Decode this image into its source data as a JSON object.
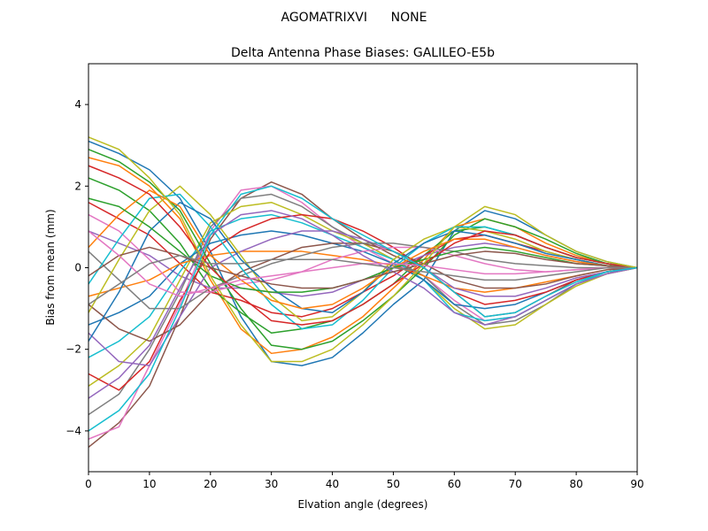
{
  "figure": {
    "suptitle": "AGOMATRIXVI      NONE"
  },
  "chart_data": {
    "type": "line",
    "title": "Delta Antenna Phase Biases: GALILEO-E5b",
    "xlabel": "Elvation angle (degrees)",
    "ylabel": "Bias from mean (mm)",
    "xlim": [
      0,
      90
    ],
    "ylim": [
      -5,
      5
    ],
    "xticks": [
      0,
      10,
      20,
      30,
      40,
      50,
      60,
      70,
      80,
      90
    ],
    "yticks": [
      -4,
      -2,
      0,
      2,
      4
    ],
    "grid": false,
    "legend": "none",
    "x": [
      0,
      5,
      10,
      15,
      20,
      25,
      30,
      35,
      40,
      45,
      50,
      55,
      60,
      65,
      70,
      75,
      80,
      85,
      90
    ],
    "series": [
      {
        "values": [
          3.1,
          2.8,
          2.4,
          1.7,
          0.4,
          -1.2,
          -2.3,
          -2.4,
          -2.2,
          -1.6,
          -0.9,
          -0.3,
          0.9,
          1.4,
          1.2,
          0.8,
          0.4,
          0.15,
          0.0
        ]
      },
      {
        "values": [
          2.7,
          2.5,
          2.0,
          1.2,
          -0.3,
          -1.5,
          -2.1,
          -2.0,
          -1.7,
          -1.2,
          -0.5,
          0.2,
          1.0,
          1.2,
          1.0,
          0.6,
          0.3,
          0.1,
          0.0
        ]
      },
      {
        "values": [
          2.2,
          1.9,
          1.4,
          0.6,
          -0.5,
          -1.1,
          -1.6,
          -1.5,
          -1.3,
          -0.9,
          -0.4,
          0.3,
          0.9,
          1.0,
          0.8,
          0.5,
          0.25,
          0.1,
          0.0
        ]
      },
      {
        "values": [
          1.6,
          1.2,
          0.8,
          0.1,
          -0.6,
          -0.8,
          -1.1,
          -1.2,
          -1.0,
          -0.6,
          -0.2,
          0.3,
          0.7,
          0.8,
          0.6,
          0.4,
          0.2,
          0.05,
          0.0
        ]
      },
      {
        "values": [
          0.9,
          0.6,
          0.3,
          -0.2,
          -0.5,
          -0.5,
          -0.6,
          -0.7,
          -0.6,
          -0.3,
          0.0,
          0.3,
          0.5,
          0.6,
          0.5,
          0.3,
          0.15,
          0.05,
          0.0
        ]
      },
      {
        "values": [
          -4.4,
          -3.8,
          -2.9,
          -1.2,
          0.7,
          1.7,
          2.1,
          1.8,
          1.2,
          0.7,
          0.3,
          0.0,
          -0.6,
          -1.2,
          -1.1,
          -0.7,
          -0.3,
          -0.1,
          0.0
        ]
      },
      {
        "values": [
          -4.2,
          -3.9,
          -2.4,
          -0.9,
          0.9,
          1.9,
          2.0,
          1.6,
          1.0,
          0.5,
          0.1,
          -0.2,
          -0.8,
          -1.3,
          -1.2,
          -0.8,
          -0.4,
          -0.15,
          0.0
        ]
      },
      {
        "values": [
          -3.6,
          -3.1,
          -2.0,
          -0.6,
          1.0,
          1.7,
          1.8,
          1.5,
          1.0,
          0.6,
          0.2,
          -0.2,
          -0.9,
          -1.4,
          -1.3,
          -0.9,
          -0.4,
          -0.15,
          0.0
        ]
      },
      {
        "values": [
          -2.9,
          -2.4,
          -1.7,
          -0.3,
          1.1,
          1.5,
          1.6,
          1.3,
          0.9,
          0.6,
          0.2,
          -0.3,
          -1.0,
          -1.5,
          -1.4,
          -0.9,
          -0.45,
          -0.15,
          0.0
        ]
      },
      {
        "values": [
          -2.2,
          -1.8,
          -1.2,
          -0.1,
          0.9,
          1.2,
          1.3,
          1.1,
          0.8,
          0.5,
          0.2,
          -0.3,
          -1.1,
          -1.3,
          -1.2,
          -0.8,
          -0.4,
          -0.1,
          0.0
        ]
      },
      {
        "values": [
          -1.4,
          -1.1,
          -0.7,
          0.1,
          0.6,
          0.8,
          0.9,
          0.8,
          0.6,
          0.4,
          0.1,
          -0.3,
          -0.9,
          -1.0,
          -0.9,
          -0.6,
          -0.3,
          -0.1,
          0.0
        ]
      },
      {
        "values": [
          -0.7,
          -0.5,
          -0.3,
          0.1,
          0.3,
          0.4,
          0.4,
          0.4,
          0.3,
          0.2,
          0.05,
          -0.2,
          -0.5,
          -0.6,
          -0.5,
          -0.35,
          -0.2,
          -0.05,
          0.0
        ]
      },
      {
        "values": [
          2.9,
          2.6,
          2.1,
          1.4,
          0.1,
          -1.0,
          -1.9,
          -2.0,
          -1.8,
          -1.3,
          -0.7,
          0.0,
          0.8,
          1.2,
          1.0,
          0.7,
          0.35,
          0.1,
          0.0
        ]
      },
      {
        "values": [
          -2.6,
          -3.0,
          -2.3,
          -0.8,
          0.4,
          0.9,
          1.2,
          1.3,
          1.2,
          0.9,
          0.5,
          0.0,
          -0.6,
          -0.9,
          -0.8,
          -0.6,
          -0.3,
          -0.1,
          0.0
        ]
      },
      {
        "values": [
          -1.6,
          -2.3,
          -2.4,
          -1.2,
          0.0,
          0.4,
          0.7,
          0.9,
          0.9,
          0.7,
          0.4,
          0.0,
          -0.5,
          -0.7,
          -0.7,
          -0.5,
          -0.25,
          -0.1,
          0.0
        ]
      },
      {
        "values": [
          -0.9,
          -1.5,
          -1.8,
          -1.4,
          -0.6,
          -0.1,
          0.2,
          0.5,
          0.6,
          0.6,
          0.4,
          0.1,
          -0.3,
          -0.5,
          -0.5,
          -0.4,
          -0.2,
          -0.05,
          0.0
        ]
      },
      {
        "values": [
          1.3,
          0.9,
          0.2,
          -0.6,
          -0.6,
          -0.4,
          -0.3,
          -0.1,
          0.2,
          0.4,
          0.5,
          0.5,
          0.3,
          0.1,
          -0.05,
          -0.1,
          -0.05,
          0.0,
          0.0
        ]
      },
      {
        "values": [
          0.4,
          -0.3,
          -1.0,
          -1.0,
          -0.5,
          -0.2,
          0.1,
          0.3,
          0.5,
          0.6,
          0.6,
          0.5,
          0.4,
          0.2,
          0.1,
          0.05,
          0.0,
          0.0,
          0.0
        ]
      },
      {
        "values": [
          -1.1,
          0.2,
          1.4,
          2.0,
          1.3,
          0.3,
          -0.7,
          -1.3,
          -1.2,
          -0.6,
          0.2,
          0.7,
          1.0,
          0.9,
          0.7,
          0.4,
          0.2,
          0.05,
          0.0
        ]
      },
      {
        "values": [
          -0.4,
          0.7,
          1.7,
          1.8,
          1.0,
          0.0,
          -0.9,
          -1.5,
          -1.4,
          -0.8,
          0.0,
          0.6,
          1.0,
          1.0,
          0.8,
          0.5,
          0.25,
          0.1,
          0.0
        ]
      },
      {
        "values": [
          -1.8,
          -0.6,
          0.9,
          1.6,
          1.2,
          0.2,
          -0.5,
          -1.0,
          -1.1,
          -0.6,
          0.1,
          0.6,
          0.9,
          0.8,
          0.6,
          0.35,
          0.2,
          0.05,
          0.0
        ]
      },
      {
        "values": [
          0.5,
          1.3,
          1.9,
          1.5,
          0.3,
          -0.3,
          -0.8,
          -1.0,
          -0.9,
          -0.5,
          0.0,
          0.4,
          0.7,
          0.7,
          0.5,
          0.3,
          0.15,
          0.05,
          0.0
        ]
      },
      {
        "values": [
          1.7,
          1.5,
          1.0,
          0.4,
          -0.2,
          -0.5,
          -0.6,
          -0.6,
          -0.5,
          -0.3,
          0.0,
          0.2,
          0.4,
          0.5,
          0.4,
          0.25,
          0.1,
          0.05,
          0.0
        ]
      },
      {
        "values": [
          2.5,
          2.2,
          1.8,
          1.0,
          0.0,
          -0.7,
          -1.3,
          -1.4,
          -1.3,
          -0.9,
          -0.4,
          0.1,
          0.6,
          0.9,
          0.8,
          0.5,
          0.25,
          0.1,
          0.0
        ]
      },
      {
        "values": [
          -3.2,
          -2.7,
          -1.9,
          -0.5,
          0.8,
          1.3,
          1.4,
          1.2,
          0.8,
          0.3,
          -0.1,
          -0.5,
          -1.1,
          -1.4,
          -1.2,
          -0.8,
          -0.4,
          -0.15,
          0.0
        ]
      },
      {
        "values": [
          -0.2,
          0.3,
          0.5,
          0.3,
          0.0,
          -0.2,
          -0.4,
          -0.5,
          -0.5,
          -0.3,
          -0.1,
          0.1,
          0.3,
          0.4,
          0.35,
          0.2,
          0.1,
          0.05,
          0.0
        ]
      },
      {
        "values": [
          0.9,
          0.3,
          -0.4,
          -0.7,
          -0.5,
          -0.3,
          -0.2,
          -0.1,
          0.0,
          0.1,
          0.1,
          0.05,
          -0.05,
          -0.15,
          -0.15,
          -0.1,
          -0.05,
          0.0,
          0.0
        ]
      },
      {
        "values": [
          -0.9,
          -0.4,
          0.1,
          0.3,
          0.1,
          0.1,
          0.2,
          0.2,
          0.2,
          0.1,
          0.0,
          -0.1,
          -0.2,
          -0.3,
          -0.3,
          -0.2,
          -0.1,
          0.0,
          0.0
        ]
      },
      {
        "values": [
          3.2,
          2.9,
          2.2,
          1.3,
          -0.2,
          -1.4,
          -2.3,
          -2.3,
          -2.0,
          -1.4,
          -0.7,
          0.1,
          1.0,
          1.5,
          1.3,
          0.8,
          0.4,
          0.15,
          0.0
        ]
      },
      {
        "values": [
          -4.0,
          -3.5,
          -2.6,
          -1.0,
          0.8,
          1.8,
          2.0,
          1.7,
          1.2,
          0.8,
          0.4,
          0.0,
          -0.6,
          -1.2,
          -1.1,
          -0.7,
          -0.35,
          -0.1,
          0.0
        ]
      }
    ]
  },
  "colors": {
    "cycle": [
      "#1f77b4",
      "#ff7f0e",
      "#2ca02c",
      "#d62728",
      "#9467bd",
      "#8c564b",
      "#e377c2",
      "#7f7f7f",
      "#bcbd22",
      "#17becf"
    ]
  }
}
